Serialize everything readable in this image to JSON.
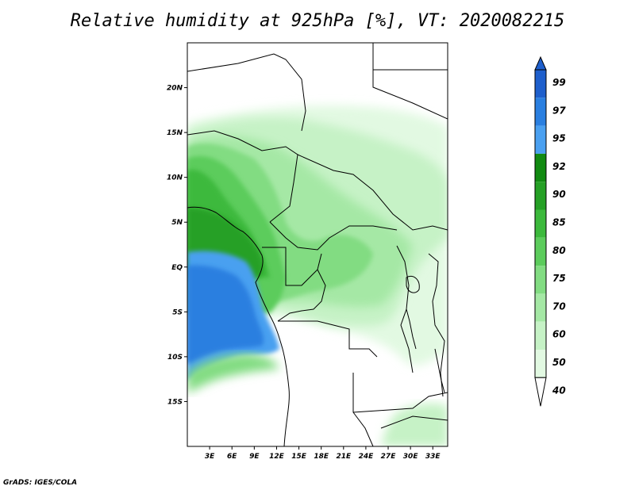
{
  "title": "Relative humidity at 925hPa [%], VT: 2020082215",
  "footer": "GrADS: IGES/COLA",
  "map": {
    "lat_range": [
      -20,
      25
    ],
    "lon_range": [
      0,
      35
    ],
    "lat_ticks": [
      {
        "value": 20,
        "label": "20N"
      },
      {
        "value": 15,
        "label": "15N"
      },
      {
        "value": 10,
        "label": "10N"
      },
      {
        "value": 5,
        "label": "5N"
      },
      {
        "value": 0,
        "label": "EQ"
      },
      {
        "value": -5,
        "label": "5S"
      },
      {
        "value": -10,
        "label": "10S"
      },
      {
        "value": -15,
        "label": "15S"
      }
    ],
    "lon_ticks": [
      {
        "value": 3,
        "label": "3E"
      },
      {
        "value": 6,
        "label": "6E"
      },
      {
        "value": 9,
        "label": "9E"
      },
      {
        "value": 12,
        "label": "12E"
      },
      {
        "value": 15,
        "label": "15E"
      },
      {
        "value": 18,
        "label": "18E"
      },
      {
        "value": 21,
        "label": "21E"
      },
      {
        "value": 24,
        "label": "24E"
      },
      {
        "value": 27,
        "label": "27E"
      },
      {
        "value": 30,
        "label": "30E"
      },
      {
        "value": 33,
        "label": "33E"
      }
    ]
  },
  "colorbar": {
    "levels": [
      {
        "label": "99",
        "color": "#1e5fcc"
      },
      {
        "label": "97",
        "color": "#2a7fe0"
      },
      {
        "label": "95",
        "color": "#4aa0f0"
      },
      {
        "label": "92",
        "color": "#118a11"
      },
      {
        "label": "90",
        "color": "#25a025"
      },
      {
        "label": "85",
        "color": "#3cb93c"
      },
      {
        "label": "80",
        "color": "#5ccc5c"
      },
      {
        "label": "75",
        "color": "#82dc82"
      },
      {
        "label": "70",
        "color": "#a5e8a5"
      },
      {
        "label": "60",
        "color": "#c6f2c6"
      },
      {
        "label": "50",
        "color": "#e2f9e2"
      },
      {
        "label": "40",
        "color": "#ffffff"
      }
    ],
    "over_color": "#1e5fcc",
    "under_color": "#ffffff"
  }
}
